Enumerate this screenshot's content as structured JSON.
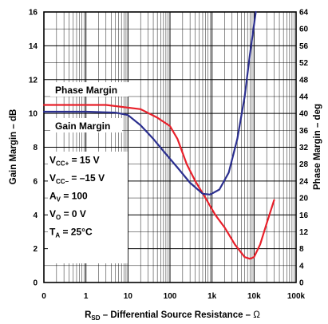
{
  "chart_data": {
    "type": "line",
    "x_scale": "log",
    "xlabel": {
      "main": "R",
      "sub": "SD",
      "rest": " – Differential Source Resistance – ",
      "unit": "Ω"
    },
    "ylabel_left": "Gain Margin – dB",
    "ylabel_right": "Phase Margin – deg",
    "xlim": [
      0,
      100000
    ],
    "ylim_left": [
      0,
      16
    ],
    "ylim_right": [
      0,
      64
    ],
    "x_ticks": [
      {
        "value": 0,
        "label": "0"
      },
      {
        "value": 1,
        "label": "1"
      },
      {
        "value": 10,
        "label": "10"
      },
      {
        "value": 100,
        "label": "100"
      },
      {
        "value": 1000,
        "label": "1k"
      },
      {
        "value": 10000,
        "label": "10k"
      },
      {
        "value": 100000,
        "label": "100k"
      }
    ],
    "y_ticks_left": [
      "0",
      "2",
      "4",
      "6",
      "8",
      "10",
      "12",
      "14",
      "16"
    ],
    "y_ticks_right": [
      "0",
      "4",
      "8",
      "12",
      "16",
      "20",
      "24",
      "28",
      "32",
      "36",
      "40",
      "44",
      "48",
      "52",
      "56",
      "60",
      "64"
    ],
    "grid": true,
    "series": [
      {
        "name": "Phase Margin",
        "axis": "right",
        "color": "#e8202a",
        "points": [
          [
            0.1,
            42
          ],
          [
            0.5,
            42
          ],
          [
            3,
            42
          ],
          [
            20,
            41
          ],
          [
            50,
            39
          ],
          [
            100,
            37
          ],
          [
            150,
            34
          ],
          [
            250,
            28
          ],
          [
            400,
            24
          ],
          [
            700,
            20
          ],
          [
            1200,
            16
          ],
          [
            2000,
            13
          ],
          [
            3500,
            9
          ],
          [
            6000,
            6
          ],
          [
            8000,
            5.6
          ],
          [
            10000,
            6
          ],
          [
            14000,
            9
          ],
          [
            20000,
            14
          ],
          [
            30000,
            19.5
          ]
        ]
      },
      {
        "name": "Gain Margin",
        "axis": "left",
        "color": "#2b2f8f",
        "points": [
          [
            0.1,
            10.1
          ],
          [
            1,
            10.1
          ],
          [
            5,
            10.05
          ],
          [
            10,
            9.9
          ],
          [
            20,
            9.3
          ],
          [
            40,
            8.5
          ],
          [
            80,
            7.6
          ],
          [
            150,
            6.8
          ],
          [
            300,
            5.9
          ],
          [
            600,
            5.25
          ],
          [
            900,
            5.2
          ],
          [
            1500,
            5.5
          ],
          [
            2500,
            6.5
          ],
          [
            4000,
            8.5
          ],
          [
            6000,
            11
          ],
          [
            8000,
            13.5
          ],
          [
            11000,
            16
          ]
        ]
      }
    ],
    "legend": {
      "phase_margin": "Phase Margin",
      "gain_margin": "Gain Margin"
    },
    "conditions": [
      {
        "main": "V",
        "sub": "CC+",
        "rest": " = 15 V"
      },
      {
        "main": "V",
        "sub": "CC–",
        "rest": " = –15 V"
      },
      {
        "main": "A",
        "sub": "V",
        "rest": " = 100"
      },
      {
        "main": "V",
        "sub": "O",
        "rest": " = 0 V"
      },
      {
        "main": "T",
        "sub": "A",
        "rest": " = 25°C"
      }
    ]
  }
}
